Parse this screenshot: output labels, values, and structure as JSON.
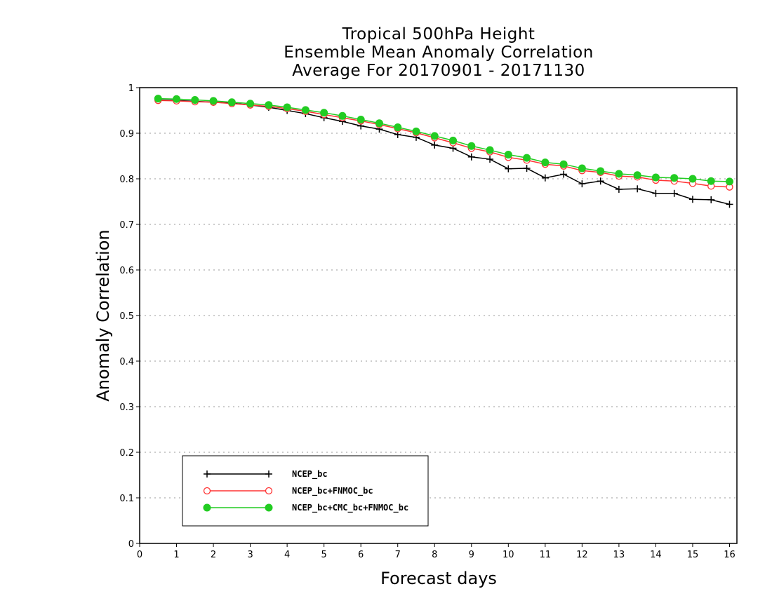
{
  "chart_data": {
    "type": "line",
    "title_lines": [
      "Tropical 500hPa Height",
      "Ensemble Mean Anomaly Correlation",
      "Average For 20170901 - 20171130"
    ],
    "xlabel": "Forecast days",
    "ylabel": "Anomaly Correlation",
    "xlim": [
      0,
      16.2
    ],
    "ylim": [
      0,
      1
    ],
    "x_ticks": [
      0,
      1,
      2,
      3,
      4,
      5,
      6,
      7,
      8,
      9,
      10,
      11,
      12,
      13,
      14,
      15,
      16
    ],
    "x_tick_labels": [
      "0",
      "1",
      "2",
      "3",
      "4",
      "5",
      "6",
      "7",
      "8",
      "9",
      "10",
      "11",
      "12",
      "13",
      "14",
      "15",
      "16"
    ],
    "y_ticks": [
      0,
      0.1,
      0.2,
      0.3,
      0.4,
      0.5,
      0.6,
      0.7,
      0.8,
      0.9,
      1
    ],
    "y_tick_labels": [
      "0",
      "0.1",
      "0.2",
      "0.3",
      "0.4",
      "0.5",
      "0.6",
      "0.7",
      "0.8",
      "0.9",
      "1"
    ],
    "grid": "dotted horizontal",
    "legend_position": "bottom-left",
    "x": [
      0.5,
      1.0,
      1.5,
      2.0,
      2.5,
      3.0,
      3.5,
      4.0,
      4.5,
      5.0,
      5.5,
      6.0,
      6.5,
      7.0,
      7.5,
      8.0,
      8.5,
      9.0,
      9.5,
      10.0,
      10.5,
      11.0,
      11.5,
      12.0,
      12.5,
      13.0,
      13.5,
      14.0,
      14.5,
      15.0,
      15.5,
      16.0
    ],
    "series": [
      {
        "name": "NCEP_bc",
        "color": "#000000",
        "marker": "plus",
        "values": [
          0.973,
          0.972,
          0.97,
          0.968,
          0.966,
          0.962,
          0.957,
          0.95,
          0.943,
          0.934,
          0.926,
          0.916,
          0.909,
          0.897,
          0.891,
          0.874,
          0.867,
          0.848,
          0.843,
          0.822,
          0.823,
          0.802,
          0.81,
          0.789,
          0.795,
          0.777,
          0.778,
          0.768,
          0.768,
          0.755,
          0.754,
          0.744
        ]
      },
      {
        "name": "NCEP_bc+FNMOC_bc",
        "color": "#ff3333",
        "marker": "open-circle",
        "values": [
          0.972,
          0.971,
          0.969,
          0.968,
          0.965,
          0.962,
          0.959,
          0.954,
          0.948,
          0.941,
          0.934,
          0.927,
          0.919,
          0.91,
          0.901,
          0.89,
          0.879,
          0.867,
          0.859,
          0.847,
          0.841,
          0.832,
          0.828,
          0.818,
          0.814,
          0.806,
          0.804,
          0.797,
          0.795,
          0.79,
          0.784,
          0.782
        ]
      },
      {
        "name": "NCEP_bc+CMC_bc+FNMOC_bc",
        "color": "#22cc22",
        "marker": "filled-circle",
        "values": [
          0.976,
          0.975,
          0.973,
          0.971,
          0.968,
          0.965,
          0.962,
          0.957,
          0.951,
          0.945,
          0.938,
          0.93,
          0.922,
          0.913,
          0.904,
          0.894,
          0.884,
          0.872,
          0.863,
          0.853,
          0.846,
          0.836,
          0.832,
          0.823,
          0.817,
          0.811,
          0.808,
          0.803,
          0.802,
          0.8,
          0.795,
          0.794
        ]
      }
    ]
  }
}
